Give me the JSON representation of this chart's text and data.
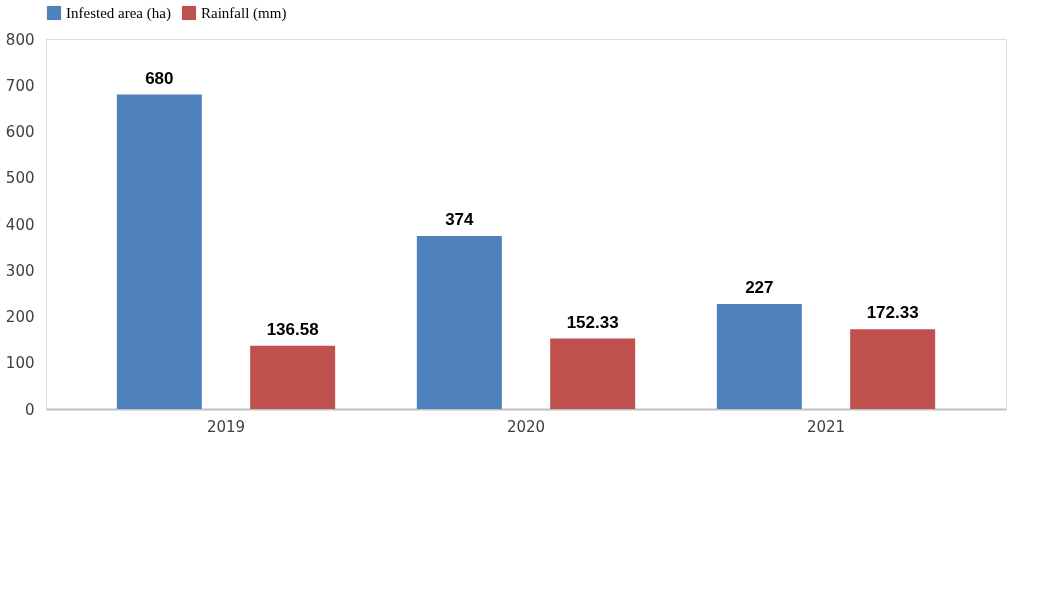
{
  "chart_data": {
    "type": "bar",
    "categories": [
      "2019",
      "2020",
      "2021"
    ],
    "series": [
      {
        "name": "Infested area (ha)",
        "color": "#4f81bd",
        "values": [
          680,
          374,
          227
        ]
      },
      {
        "name": "Rainfall (mm)",
        "color": "#c0504d",
        "values": [
          136.58,
          152.33,
          172.33
        ]
      }
    ],
    "ylim": [
      0,
      800
    ],
    "yticks": [
      0,
      100,
      200,
      300,
      400,
      500,
      600,
      700,
      800
    ],
    "data_labels": true,
    "legend": "top",
    "grid": false
  }
}
